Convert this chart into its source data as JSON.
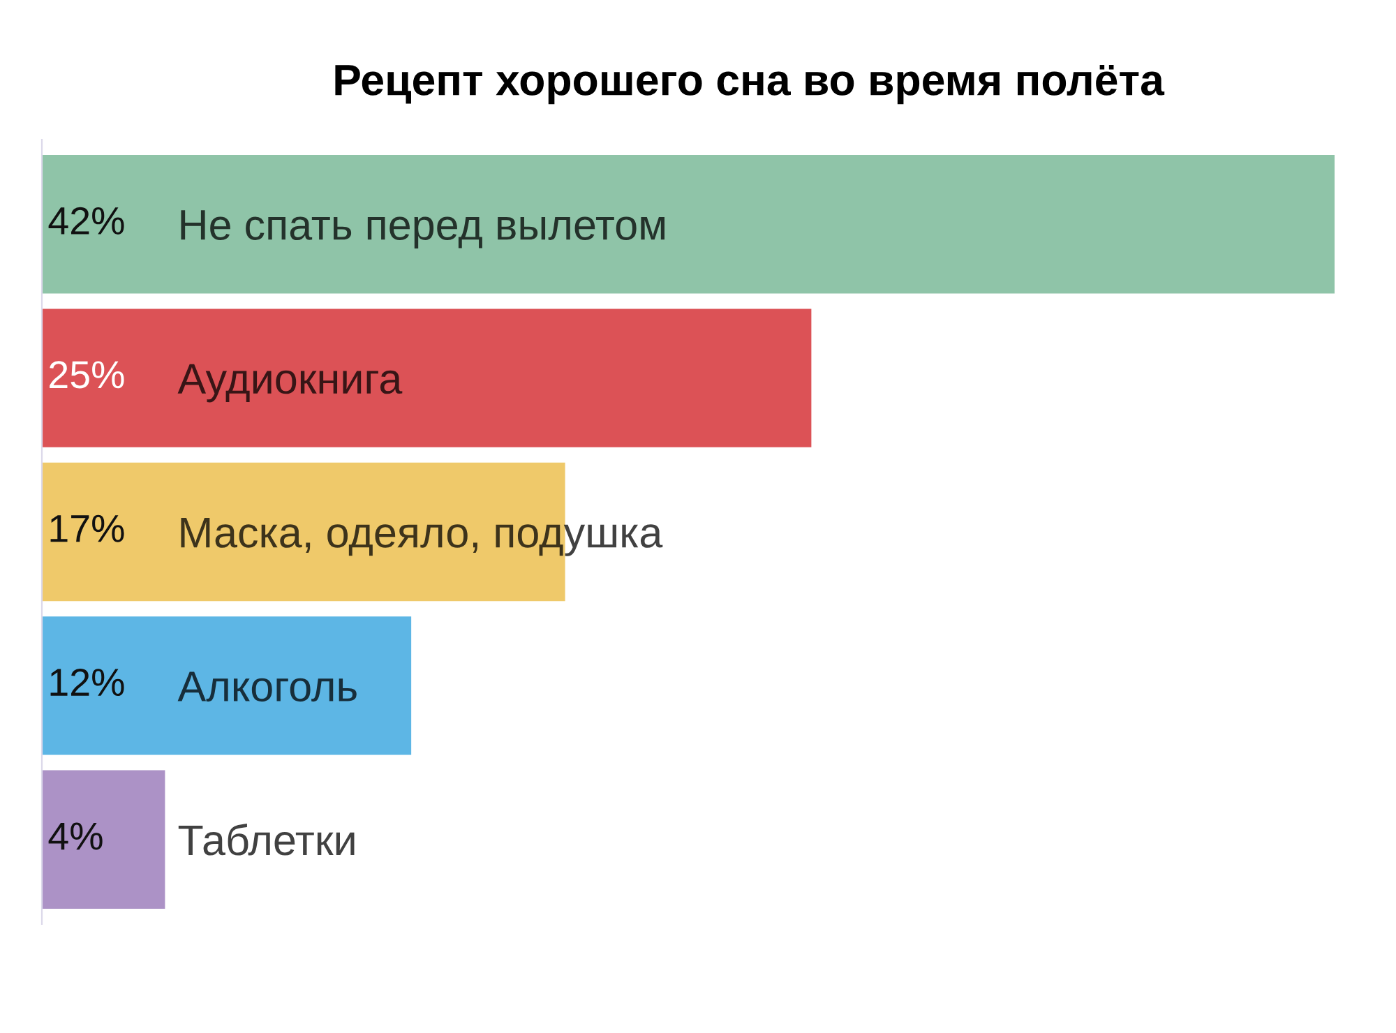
{
  "chart_data": {
    "type": "bar",
    "orientation": "horizontal",
    "title": "Рецепт хорошего сна во время полёта",
    "categories": [
      "Не спать перед вылетом",
      "Аудиокнига",
      "Маска, одеяло, подушка",
      "Алкоголь",
      "Таблетки"
    ],
    "values": [
      42,
      25,
      17,
      12,
      4
    ],
    "colors": [
      "#8fc4a8",
      "#dc5256",
      "#efc96a",
      "#5db6e5",
      "#ac92c6"
    ],
    "value_labels": [
      "42%",
      "25%",
      "17%",
      "12%",
      "4%"
    ],
    "xlim": [
      0,
      42
    ],
    "tick_labels": "y"
  }
}
